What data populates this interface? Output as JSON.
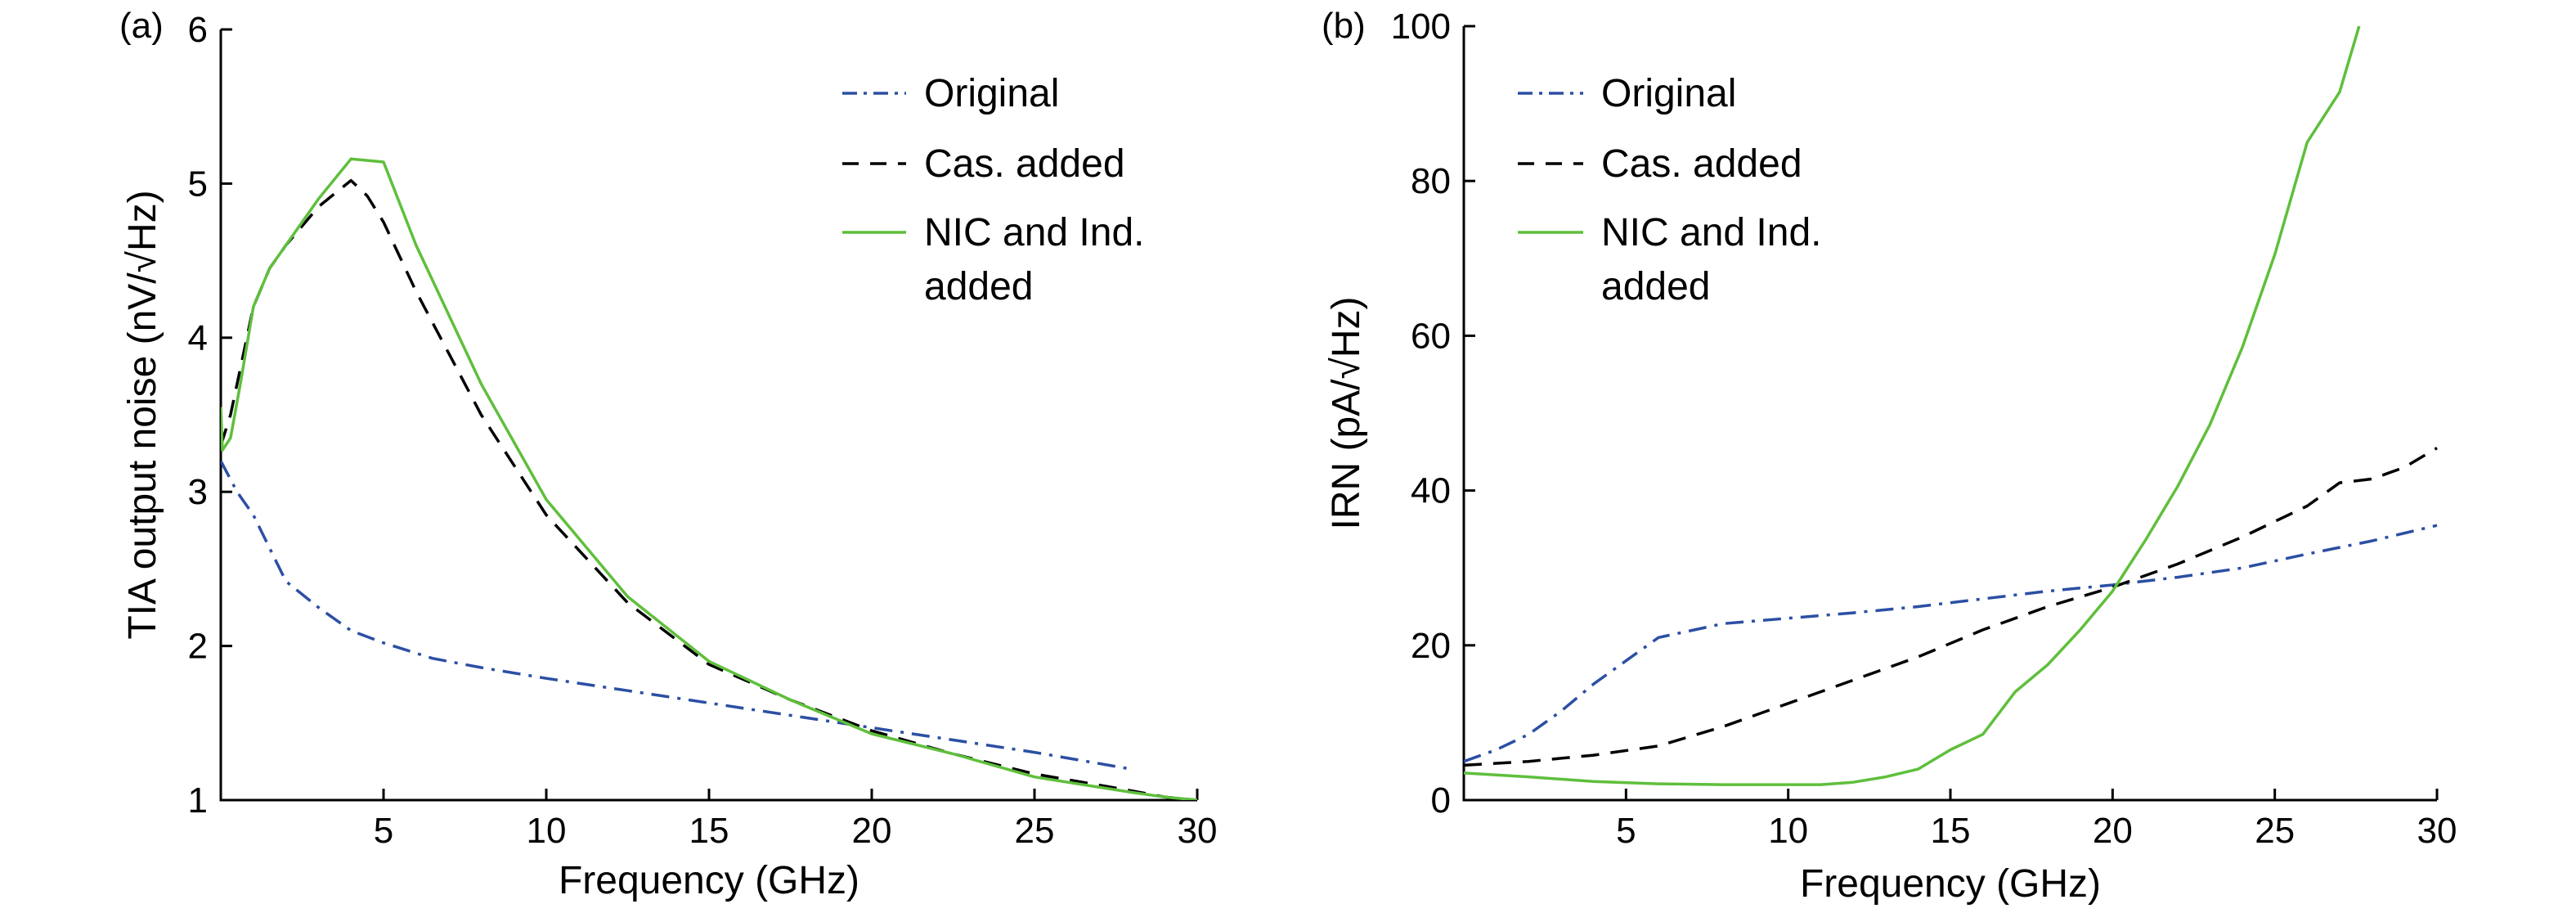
{
  "chart_data": [
    {
      "type": "line",
      "panel": "(a)",
      "xlabel": "Frequency (GHz)",
      "ylabel": "TIA output noise (nV/√Hz)",
      "xlim": [
        0,
        30
      ],
      "ylim": [
        1,
        6
      ],
      "xticks": [
        5,
        10,
        15,
        20,
        25,
        30
      ],
      "yticks": [
        1,
        2,
        3,
        4,
        5,
        6
      ],
      "legend_position": "top-right",
      "series": [
        {
          "name": "Original",
          "style": "dashdot",
          "color": "#2b4fa3",
          "x": [
            0,
            0.5,
            1,
            2,
            3,
            4,
            5,
            6.5,
            8,
            10,
            12.5,
            15,
            17.5,
            20,
            22.5,
            25,
            28
          ],
          "y": [
            3.2,
            3.0,
            2.85,
            2.42,
            2.25,
            2.1,
            2.02,
            1.92,
            1.86,
            1.79,
            1.71,
            1.63,
            1.55,
            1.47,
            1.39,
            1.31,
            1.2
          ]
        },
        {
          "name": "Cas. added",
          "style": "dashed",
          "color": "#000000",
          "x": [
            0,
            0.3,
            0.7,
            1,
            1.5,
            2,
            3,
            4,
            4.5,
            5,
            6,
            7,
            8,
            10,
            12.5,
            15,
            17.5,
            20,
            22.5,
            25,
            28,
            29,
            30
          ],
          "y": [
            3.3,
            3.5,
            3.9,
            4.2,
            4.45,
            4.6,
            4.85,
            5.02,
            4.92,
            4.75,
            4.3,
            3.9,
            3.5,
            2.85,
            2.28,
            1.88,
            1.65,
            1.45,
            1.3,
            1.17,
            1.06,
            1.02,
            1.0
          ]
        },
        {
          "name": "NIC and Ind. added",
          "style": "solid",
          "color": "#5fbf3c",
          "x": [
            0,
            0.05,
            0.3,
            0.6,
            1,
            1.5,
            2,
            3,
            4,
            5,
            6,
            8,
            10,
            12.5,
            15,
            17.5,
            20,
            22.5,
            25,
            28,
            29,
            30
          ],
          "y": [
            3.55,
            3.27,
            3.35,
            3.7,
            4.2,
            4.45,
            4.6,
            4.9,
            5.16,
            5.14,
            4.6,
            3.7,
            2.95,
            2.32,
            1.9,
            1.65,
            1.43,
            1.3,
            1.15,
            1.05,
            1.02,
            1.0
          ]
        }
      ]
    },
    {
      "type": "line",
      "panel": "(b)",
      "xlabel": "Frequency (GHz)",
      "ylabel": "IRN (pA/√Hz)",
      "xlim": [
        0,
        30
      ],
      "ylim": [
        0,
        100
      ],
      "xticks": [
        5,
        10,
        15,
        20,
        25,
        30
      ],
      "yticks": [
        0,
        20,
        40,
        60,
        80,
        100
      ],
      "legend_position": "top-left",
      "series": [
        {
          "name": "Original",
          "style": "dashdot",
          "color": "#2b4fa3",
          "x": [
            0,
            1,
            2,
            3,
            4,
            5,
            6,
            8,
            10,
            12,
            14,
            16,
            18,
            20,
            22,
            24,
            26,
            28,
            30
          ],
          "y": [
            5,
            6.5,
            8.5,
            11.5,
            15,
            18,
            21,
            22.8,
            23.5,
            24.2,
            25,
            26,
            27,
            27.8,
            28.8,
            30,
            31.8,
            33.5,
            35.5
          ]
        },
        {
          "name": "Cas. added",
          "style": "dashed",
          "color": "#000000",
          "x": [
            0,
            2,
            4,
            6,
            8,
            10,
            12,
            14,
            16,
            18,
            20,
            22,
            24,
            26,
            27,
            28,
            29,
            30
          ],
          "y": [
            4.5,
            5,
            5.8,
            7,
            9.5,
            12.5,
            15.5,
            18.5,
            22,
            25,
            27.5,
            30.5,
            34,
            38,
            41,
            41.5,
            43,
            45.5
          ]
        },
        {
          "name": "NIC and Ind. added",
          "style": "solid",
          "color": "#5fbf3c",
          "x": [
            0,
            2,
            4,
            6,
            8,
            10,
            11,
            12,
            13,
            14,
            15,
            16,
            17,
            18,
            19,
            20,
            21,
            22,
            23,
            24,
            25,
            26,
            27,
            27.6
          ],
          "y": [
            3.5,
            3,
            2.4,
            2.1,
            2,
            2,
            2,
            2.3,
            3,
            4,
            6.5,
            8.5,
            14,
            17.5,
            22,
            27,
            33.5,
            40.5,
            48.5,
            58.5,
            70.5,
            85,
            91.5,
            100
          ]
        }
      ]
    }
  ]
}
